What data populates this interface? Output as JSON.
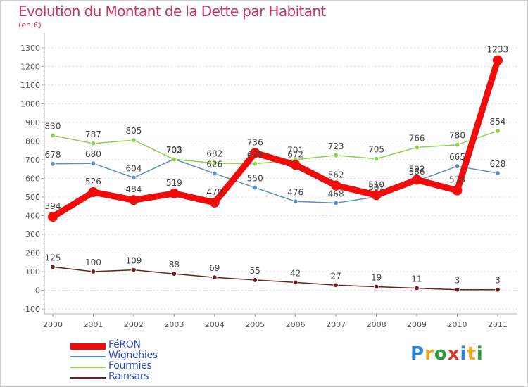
{
  "title": "Evolution du Montant de la Dette par Habitant",
  "subtitle": "(en €)",
  "logo": {
    "text": "Proxiti",
    "letters": [
      {
        "ch": "P",
        "color": "#2a84d6"
      },
      {
        "ch": "r",
        "color": "#f0a51e"
      },
      {
        "ch": "o",
        "color": "#2a9d3a"
      },
      {
        "ch": "x",
        "color": "#d23c2c"
      },
      {
        "ch": "i",
        "color": "#2a84d6"
      },
      {
        "ch": "t",
        "color": "#f0a51e"
      },
      {
        "ch": "i",
        "color": "#2a9d3a"
      }
    ]
  },
  "chart_data": {
    "type": "line",
    "title": "Evolution du Montant de la Dette par Habitant",
    "subtitle": "(en €)",
    "x": [
      "2000",
      "2001",
      "2002",
      "2003",
      "2004",
      "2005",
      "2006",
      "2007",
      "2008",
      "2009",
      "2010",
      "2011"
    ],
    "yticks": [
      -100,
      0,
      100,
      200,
      300,
      400,
      500,
      600,
      700,
      800,
      900,
      1000,
      1100,
      1200,
      1300
    ],
    "ylim": [
      -100,
      1300
    ],
    "grid": true,
    "legend_position": "bottom-left",
    "series": [
      {
        "name": "FéRON",
        "color": "#f20b0b",
        "emphasis": true,
        "values": [
          394,
          526,
          484,
          519,
          470,
          736,
          672,
          562,
          510,
          592,
          535,
          1233
        ],
        "labels": [
          "394",
          "526",
          "484",
          "519",
          "470",
          "736",
          "672",
          "562",
          "510",
          "592",
          "535",
          "1233"
        ]
      },
      {
        "name": "Wignehies",
        "color": "#5b8fc6",
        "emphasis": false,
        "values": [
          678,
          680,
          604,
          703,
          626,
          550,
          476,
          468,
          501,
          586,
          665,
          628
        ],
        "labels": [
          "678",
          "680",
          "604",
          "703",
          "626",
          "550",
          "476",
          "468",
          "501",
          "586",
          "665",
          "628"
        ]
      },
      {
        "name": "Fourmies",
        "color": "#8fd14f",
        "emphasis": false,
        "values": [
          830,
          787,
          805,
          702,
          682,
          678,
          701,
          723,
          705,
          766,
          780,
          854
        ],
        "labels": [
          "830",
          "787",
          "805",
          "702",
          "682",
          "678",
          "701",
          "723",
          "705",
          "766",
          "780",
          "854"
        ]
      },
      {
        "name": "Rainsars",
        "color": "#6b1f1f",
        "emphasis": false,
        "values": [
          125,
          100,
          109,
          88,
          69,
          55,
          42,
          27,
          19,
          11,
          3,
          3
        ],
        "labels": [
          "125",
          "100",
          "109",
          "88",
          "69",
          "55",
          "42",
          "27",
          "19",
          "11",
          "3",
          "3"
        ]
      }
    ]
  }
}
